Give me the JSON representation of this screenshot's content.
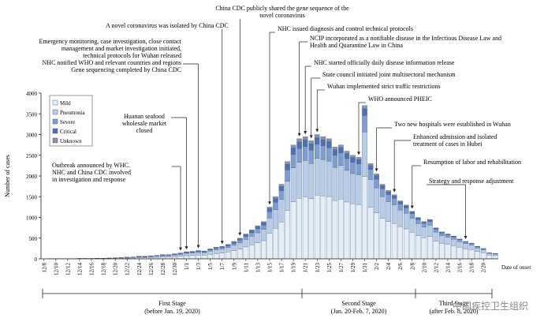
{
  "chart_data": {
    "type": "bar",
    "stacked": true,
    "ylabel": "Number of cases",
    "xlabel": "Date of onset",
    "ylim": [
      0,
      4000
    ],
    "yticks": [
      0,
      500,
      1000,
      1500,
      2000,
      2500,
      3000,
      3500,
      4000
    ],
    "xtick_labels": [
      "12/8",
      "12/10",
      "12/12",
      "12/14",
      "12/16",
      "12/18",
      "12/20",
      "12/22",
      "12/24",
      "12/26",
      "12/28",
      "12/30",
      "1/1",
      "1/3",
      "1/5",
      "1/7",
      "1/9",
      "1/11",
      "1/13",
      "1/15",
      "1/17",
      "1/19",
      "1/21",
      "1/23",
      "1/25",
      "1/27",
      "1/29",
      "1/31",
      "2/2",
      "2/4",
      "2/6",
      "2/8",
      "2/10",
      "2/12",
      "2/14",
      "2/16",
      "2/18",
      "2/20"
    ],
    "legend": {
      "placement": "top-left",
      "items": [
        {
          "name": "Mild",
          "color": "#e3eef8"
        },
        {
          "name": "Pneumonia",
          "color": "#b6cce8"
        },
        {
          "name": "Severe",
          "color": "#7e9dd0"
        },
        {
          "name": "Critical",
          "color": "#4f71b2"
        },
        {
          "name": "Unknown",
          "color": "#8b93a3"
        }
      ]
    },
    "totals": [
      0,
      5,
      5,
      5,
      5,
      5,
      10,
      10,
      10,
      15,
      15,
      20,
      25,
      30,
      40,
      45,
      60,
      60,
      70,
      80,
      100,
      100,
      120,
      140,
      170,
      180,
      200,
      190,
      240,
      280,
      300,
      350,
      420,
      500,
      600,
      700,
      800,
      900,
      1250,
      1500,
      1800,
      2350,
      2750,
      2900,
      2950,
      2850,
      3000,
      2950,
      2900,
      2700,
      2750,
      2600,
      2500,
      2450,
      3700,
      2300,
      2050,
      1800,
      1650,
      1550,
      1400,
      1300,
      1150,
      1000,
      900,
      950,
      750,
      650,
      600,
      550,
      480,
      420,
      380,
      300,
      250,
      150,
      130
    ],
    "annotations": [
      {
        "label": "Outbreak announced by WHC. NHC and China CDC involved in investigation and response",
        "date": "12/31"
      },
      {
        "label": "Huanan seafood wholesale market closed",
        "date": "1/1"
      },
      {
        "label": "Emergency monitoring, case investigation, close contact management and market investigation initiated, technical protocols for Wuhan released NHC notified WHO and relevant countries and regions Gene sequencing completed by China CDC",
        "date": "1/3"
      },
      {
        "label": "A novel coronavirus was isolated by China CDC",
        "date": "1/7"
      },
      {
        "label": "China CDC publicly shared the gene sequence of the novel coronavirus",
        "date": "1/10"
      },
      {
        "label": "NHC issued diagnosis and control technical protocols",
        "date": "1/15"
      },
      {
        "label": "NCIP incorporated as a notifiable disease in the Infectious Disease Law and Health and Quarantine Law in China",
        "date": "1/20"
      },
      {
        "label": "NHC started officially daily disease information release",
        "date": "1/21"
      },
      {
        "label": "State council initiated joint multisectoral mechanism",
        "date": "1/22"
      },
      {
        "label": "Wuhan implemented strict traffic restrictions",
        "date": "1/23"
      },
      {
        "label": "WHO announced PHEIC",
        "date": "1/30"
      },
      {
        "label": "Two new hospitals were established in Wuhan",
        "date": "2/2"
      },
      {
        "label": "Enhanced admission and isolated treatment of cases in Hubei",
        "date": "2/5"
      },
      {
        "label": "Resumption of labor and rehabilitation",
        "date": "2/8"
      },
      {
        "label": "Strategy and response adjustment",
        "date": "2/17"
      }
    ],
    "stages": [
      {
        "label": "First Stage",
        "sub": "(before Jan. 19, 2020)"
      },
      {
        "label": "Second Stage",
        "sub": "(Jan. 20-Feb. 7, 2020)"
      },
      {
        "label": "Third Stage",
        "sub": "(after Feb. 8, 2020)"
      }
    ]
  },
  "watermark": "中国疾控卫生组织"
}
